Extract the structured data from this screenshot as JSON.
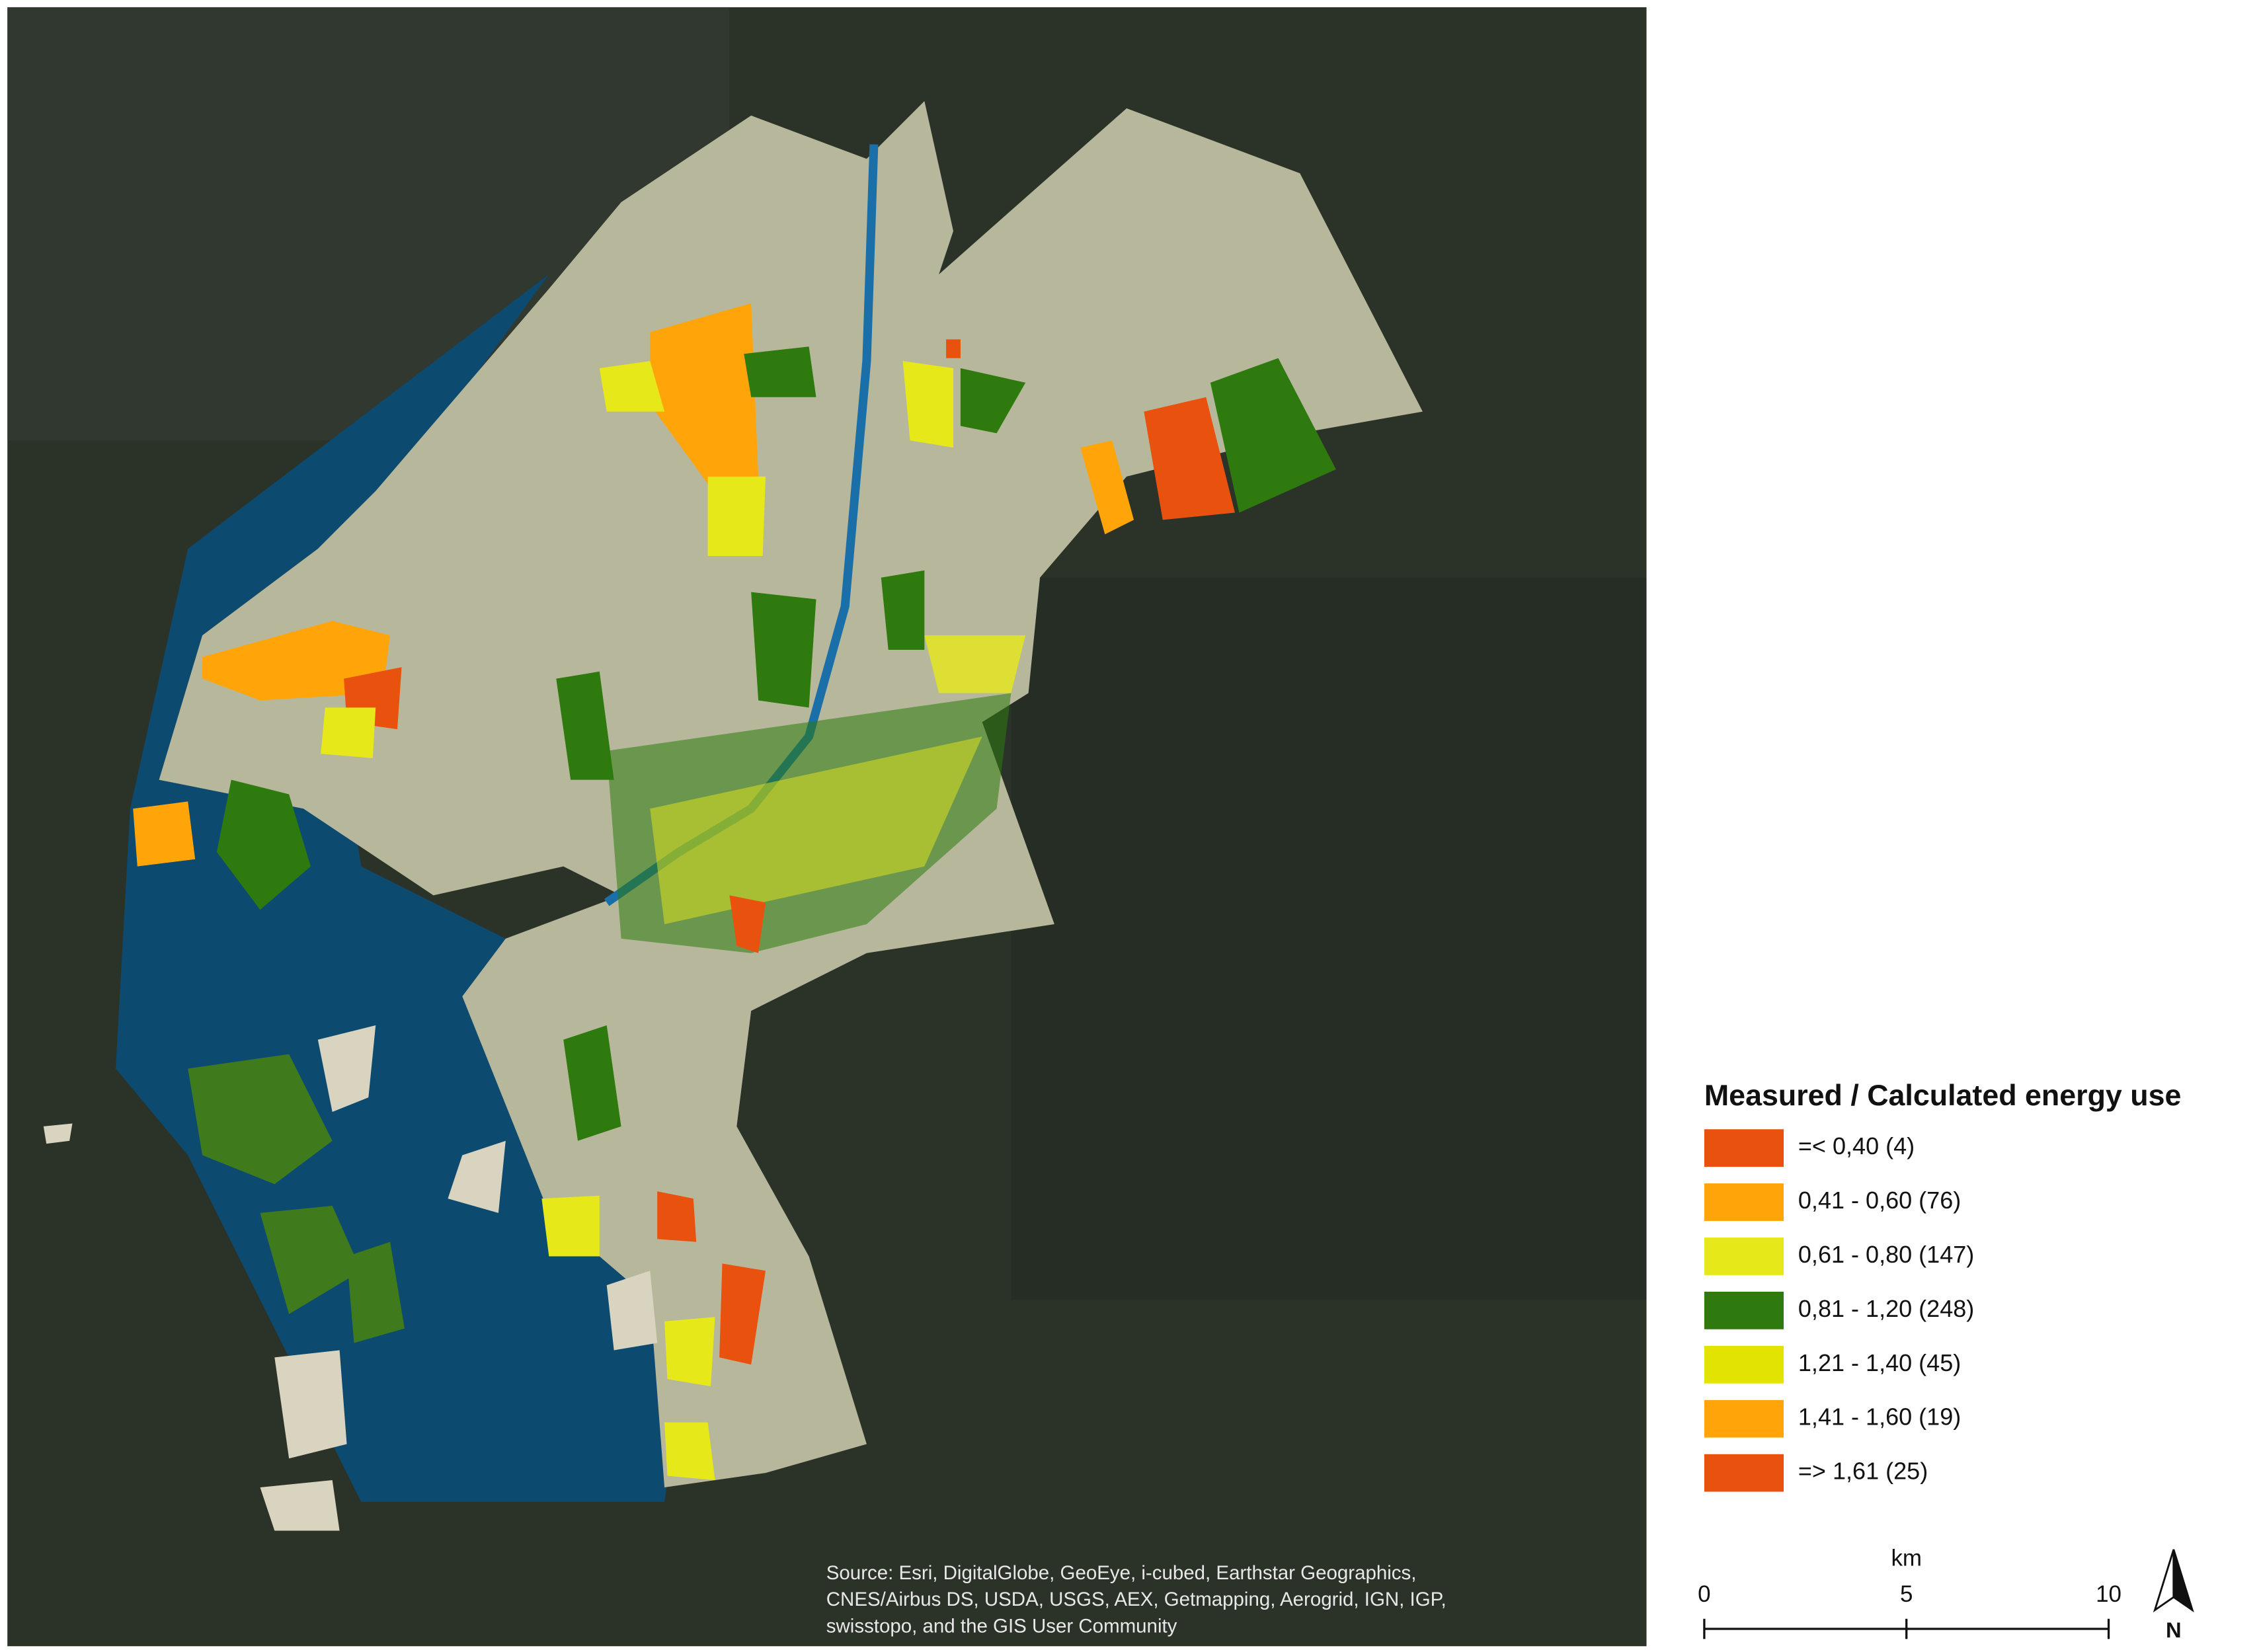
{
  "legend": {
    "title": "Measured / Calculated energy use",
    "items": [
      {
        "label": "=< 0,40  (4)",
        "color": "#e8520e"
      },
      {
        "label": "0,41 - 0,60 (76)",
        "color": "#ffa50a"
      },
      {
        "label": "0,61 - 0,80  (147)",
        "color": "#e6e81a"
      },
      {
        "label": "0,81 - 1,20  (248)",
        "color": "#2e7a0f"
      },
      {
        "label": "1,21 - 1,40  (45)",
        "color": "#e3e300"
      },
      {
        "label": "1,41 - 1,60 (19)",
        "color": "#ffa50a"
      },
      {
        "label": "=> 1,61 (25)",
        "color": "#e8520e"
      }
    ]
  },
  "scale_bar": {
    "unit": "km",
    "ticks": [
      0,
      5,
      10
    ]
  },
  "north_arrow": {
    "label": "N"
  },
  "attribution": {
    "lines": [
      "Source: Esri, DigitalGlobe, GeoEye, i-cubed, Earthstar Geographics,",
      "CNES/Airbus DS, USDA, USGS, AEX, Getmapping, Aerogrid, IGN, IGP,",
      "swisstopo, and the GIS User Community"
    ]
  }
}
